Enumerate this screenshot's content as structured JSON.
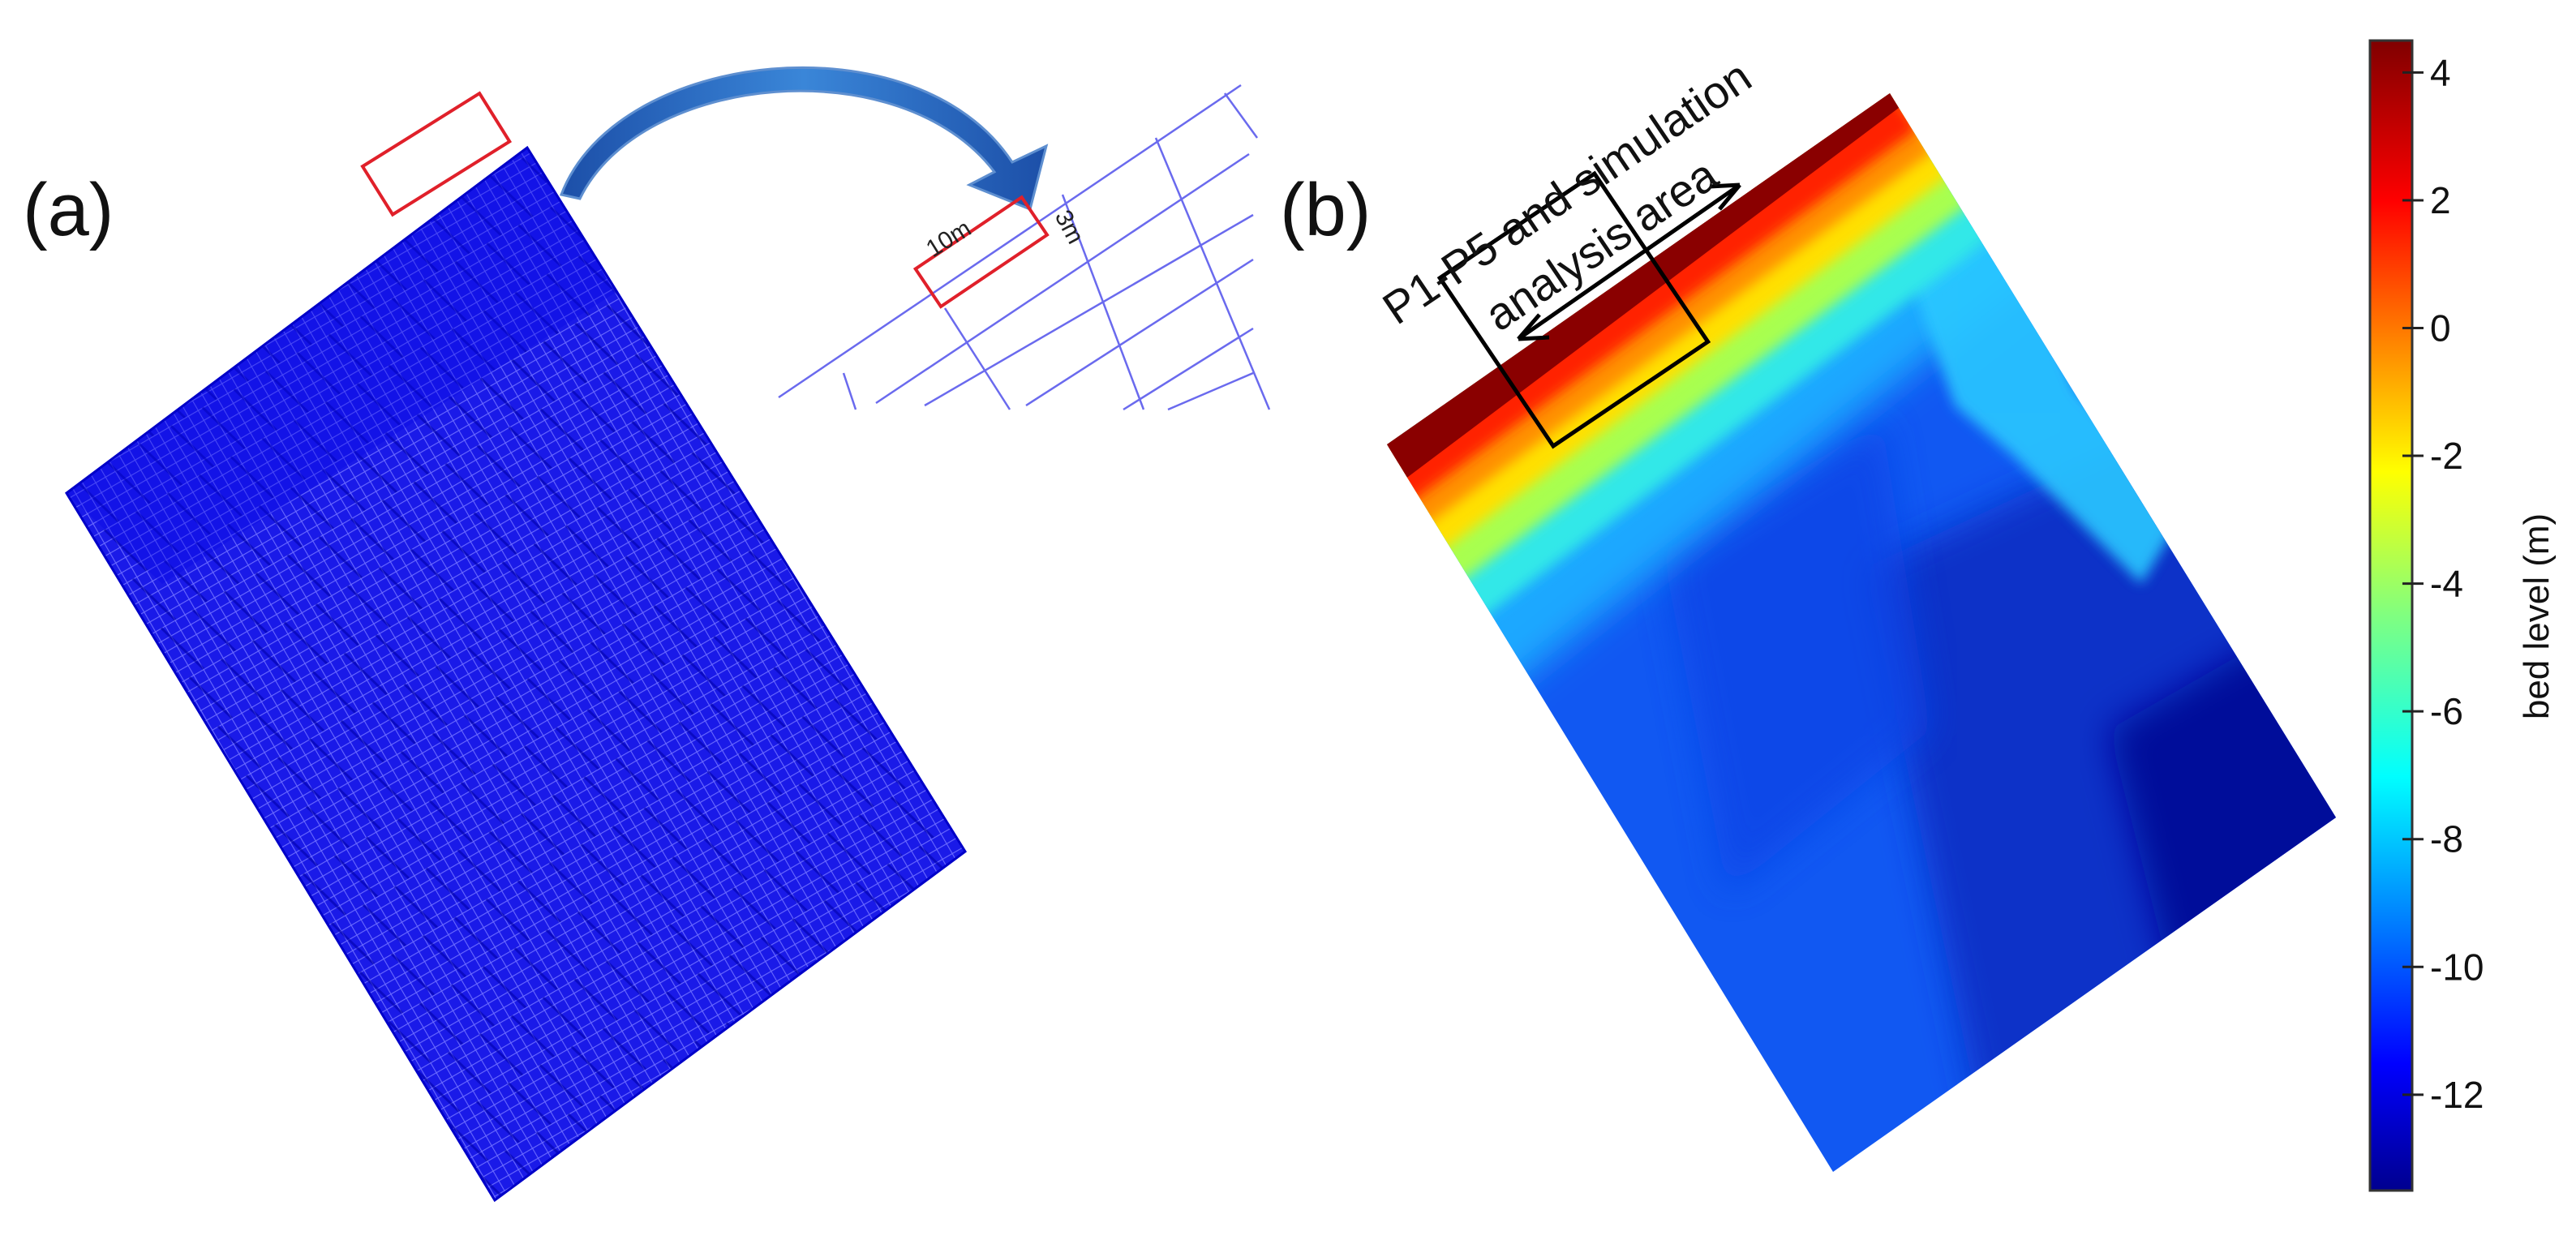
{
  "panel_a": {
    "label": "(a)",
    "zoom_labels": {
      "length": "10m",
      "width": "3m"
    }
  },
  "panel_b": {
    "label": "(b)",
    "annotation_line1": "P1-P5 and simulation",
    "annotation_line2": "analysis area"
  },
  "colorbar": {
    "title": "bed level (m)",
    "ticks": [
      "4",
      "2",
      "0",
      "-2",
      "-4",
      "-6",
      "-8",
      "-10",
      "-12"
    ],
    "range": [
      -13.5,
      4.5
    ],
    "colormap": "jet"
  },
  "colors": {
    "mesh_blue": "#1010ee",
    "highlight_red": "#e0202a",
    "arrow_blue": "#2a6fc8"
  }
}
